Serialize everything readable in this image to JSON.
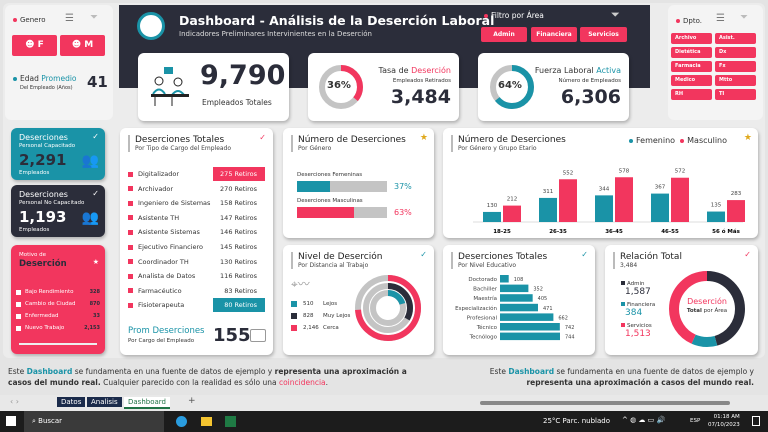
{
  "colors": {
    "pink": "#f2365e",
    "teal": "#1a93a7",
    "dark": "#2b2d3a",
    "grey": "#c4c4c4"
  },
  "gender": {
    "label": "Genero",
    "buttons": [
      "F",
      "M"
    ],
    "age_label_1": "Edad",
    "age_label_2": "Promedio",
    "age_sub": "Del Empleado (Años)",
    "age_value": "41"
  },
  "header": {
    "title": "Dashboard - Análisis de la Deserción Laboral",
    "subtitle": "Indicadores Preliminares Intervinientes en la Deserción",
    "filter_label": "Filtro por Área",
    "areas": [
      "Admin",
      "Financiera",
      "Servicios"
    ]
  },
  "kpis": {
    "total": {
      "value": "9,790",
      "label": "Empleados Totales"
    },
    "rate": {
      "pct": "36%",
      "pct_value": 36,
      "title_1": "Tasa de",
      "title_2": "Deserción",
      "sub": "Empleados Retirados",
      "value": "3,484"
    },
    "active": {
      "pct": "64%",
      "pct_value": 64,
      "title_1": "Fuerza Laboral",
      "title_2": "Activa",
      "sub": "Número de Empleados",
      "value": "6,306"
    }
  },
  "dept": {
    "label": "Dpto.",
    "items": [
      "Archivo",
      "Asist.",
      "Dietética",
      "Dx",
      "Farmacia",
      "Fx",
      "Medico",
      "Mtto",
      "RH",
      "TI"
    ]
  },
  "trained": {
    "title": "Deserciones",
    "sub": "Personal Capacitado",
    "value": "2,291",
    "unit": "Empleados"
  },
  "untrained": {
    "title": "Deserciones",
    "sub": "Personal No Capacitado",
    "value": "1,193",
    "unit": "Empleados"
  },
  "reasons": {
    "title_1": "Motivo de",
    "title_2": "Deserción",
    "items": [
      {
        "label": "Bajo Rendimiento",
        "value": "328"
      },
      {
        "label": "Cambio de Ciudad",
        "value": "870"
      },
      {
        "label": "Enfermedad",
        "value": "33"
      },
      {
        "label": "Nuevo Trabajo",
        "value": "2,153"
      }
    ]
  },
  "by_role": {
    "title": "Deserciones Totales",
    "sub": "Por Tipo de Cargo del Empleado",
    "rows": [
      {
        "label": "Digitalizador",
        "value": "275 Retiros"
      },
      {
        "label": "Archivador",
        "value": "270 Retiros"
      },
      {
        "label": "Ingeniero de Sistemas",
        "value": "158 Retiros"
      },
      {
        "label": "Asistente TH",
        "value": "147 Retiros"
      },
      {
        "label": "Asistente Sistemas",
        "value": "146 Retiros"
      },
      {
        "label": "Ejecutivo Financiero",
        "value": "145 Retiros"
      },
      {
        "label": "Coordinador TH",
        "value": "130 Retiros"
      },
      {
        "label": "Analista de Datos",
        "value": "116 Retiros"
      },
      {
        "label": "Farmacéutico",
        "value": "83 Retiros"
      },
      {
        "label": "Fisioterapeuta",
        "value": "80 Retiros"
      }
    ],
    "avg_label": "Prom Deserciones",
    "avg_sub": "Por Cargo del Empleado",
    "avg_value": "155"
  },
  "by_gender": {
    "title": "Número de Deserciones",
    "sub": "Por Género",
    "female_label": "Deserciones Femeninas",
    "female_pct": "37%",
    "female_value": 37,
    "male_label": "Deserciones Masculinas",
    "male_pct": "63%",
    "male_value": 63
  },
  "chart_data": [
    {
      "type": "bar",
      "title": "Número de Deserciones",
      "subtitle": "Por Género y Grupo Etario",
      "categories": [
        "18-25",
        "26-35",
        "36-45",
        "46-55",
        "56 ó Más"
      ],
      "series": [
        {
          "name": "Femenino",
          "values": [
            130,
            311,
            344,
            367,
            135
          ]
        },
        {
          "name": "Masculino",
          "values": [
            212,
            552,
            578,
            572,
            283
          ]
        }
      ],
      "legend": "top-right"
    },
    {
      "type": "pie",
      "title": "Nivel de Deserción",
      "subtitle": "Por Distancia al Trabajo",
      "labels": [
        "Lejos",
        "Muy Lejos",
        "Cerca"
      ],
      "values": [
        510,
        828,
        2146
      ],
      "value_labels": [
        "510",
        "828",
        "2,146"
      ]
    },
    {
      "type": "bar",
      "title": "Deserciones Totales",
      "subtitle": "Por Nivel Educativo",
      "orientation": "horizontal",
      "categories": [
        "Doctorado",
        "Bachiller",
        "Maestría",
        "Especialización",
        "Profesional",
        "Técnico",
        "Tecnólogo"
      ],
      "values": [
        108,
        352,
        405,
        471,
        662,
        742,
        744
      ]
    },
    {
      "type": "pie",
      "title": "Relación Total",
      "subtitle": "3,484",
      "center_1": "Deserción",
      "center_2": "Total",
      "center_3": "por Área",
      "labels": [
        "Admin",
        "Financiera",
        "Servicios"
      ],
      "values": [
        1587,
        384,
        1513
      ],
      "value_labels": [
        "1,587",
        "384",
        "1,513"
      ]
    }
  ],
  "footer": {
    "left_1": "Este ",
    "left_2": "Dashboard",
    "left_3": " se fundamenta en una fuente de datos de ejemplo y ",
    "left_4": "representa una aproximación a casos del mundo real.",
    "left_5": " Cualquier parecido con la realidad es sólo una ",
    "left_6": "coincidencia",
    "left_7": ".",
    "right_1": "Este ",
    "right_2": "Dashboard",
    "right_3": " se fundamenta en una fuente de datos de ejemplo y ",
    "right_4": "representa una aproximación a casos del mundo real."
  },
  "sheets": {
    "tabs": [
      "Datos",
      "Analisis",
      "Dashboard"
    ],
    "active": "Dashboard",
    "add": "+"
  },
  "taskbar": {
    "search": "Buscar",
    "weather": "25°C  Parc. nublado",
    "lang": "ESP",
    "time": "01:18 AM",
    "date": "07/10/2023"
  }
}
